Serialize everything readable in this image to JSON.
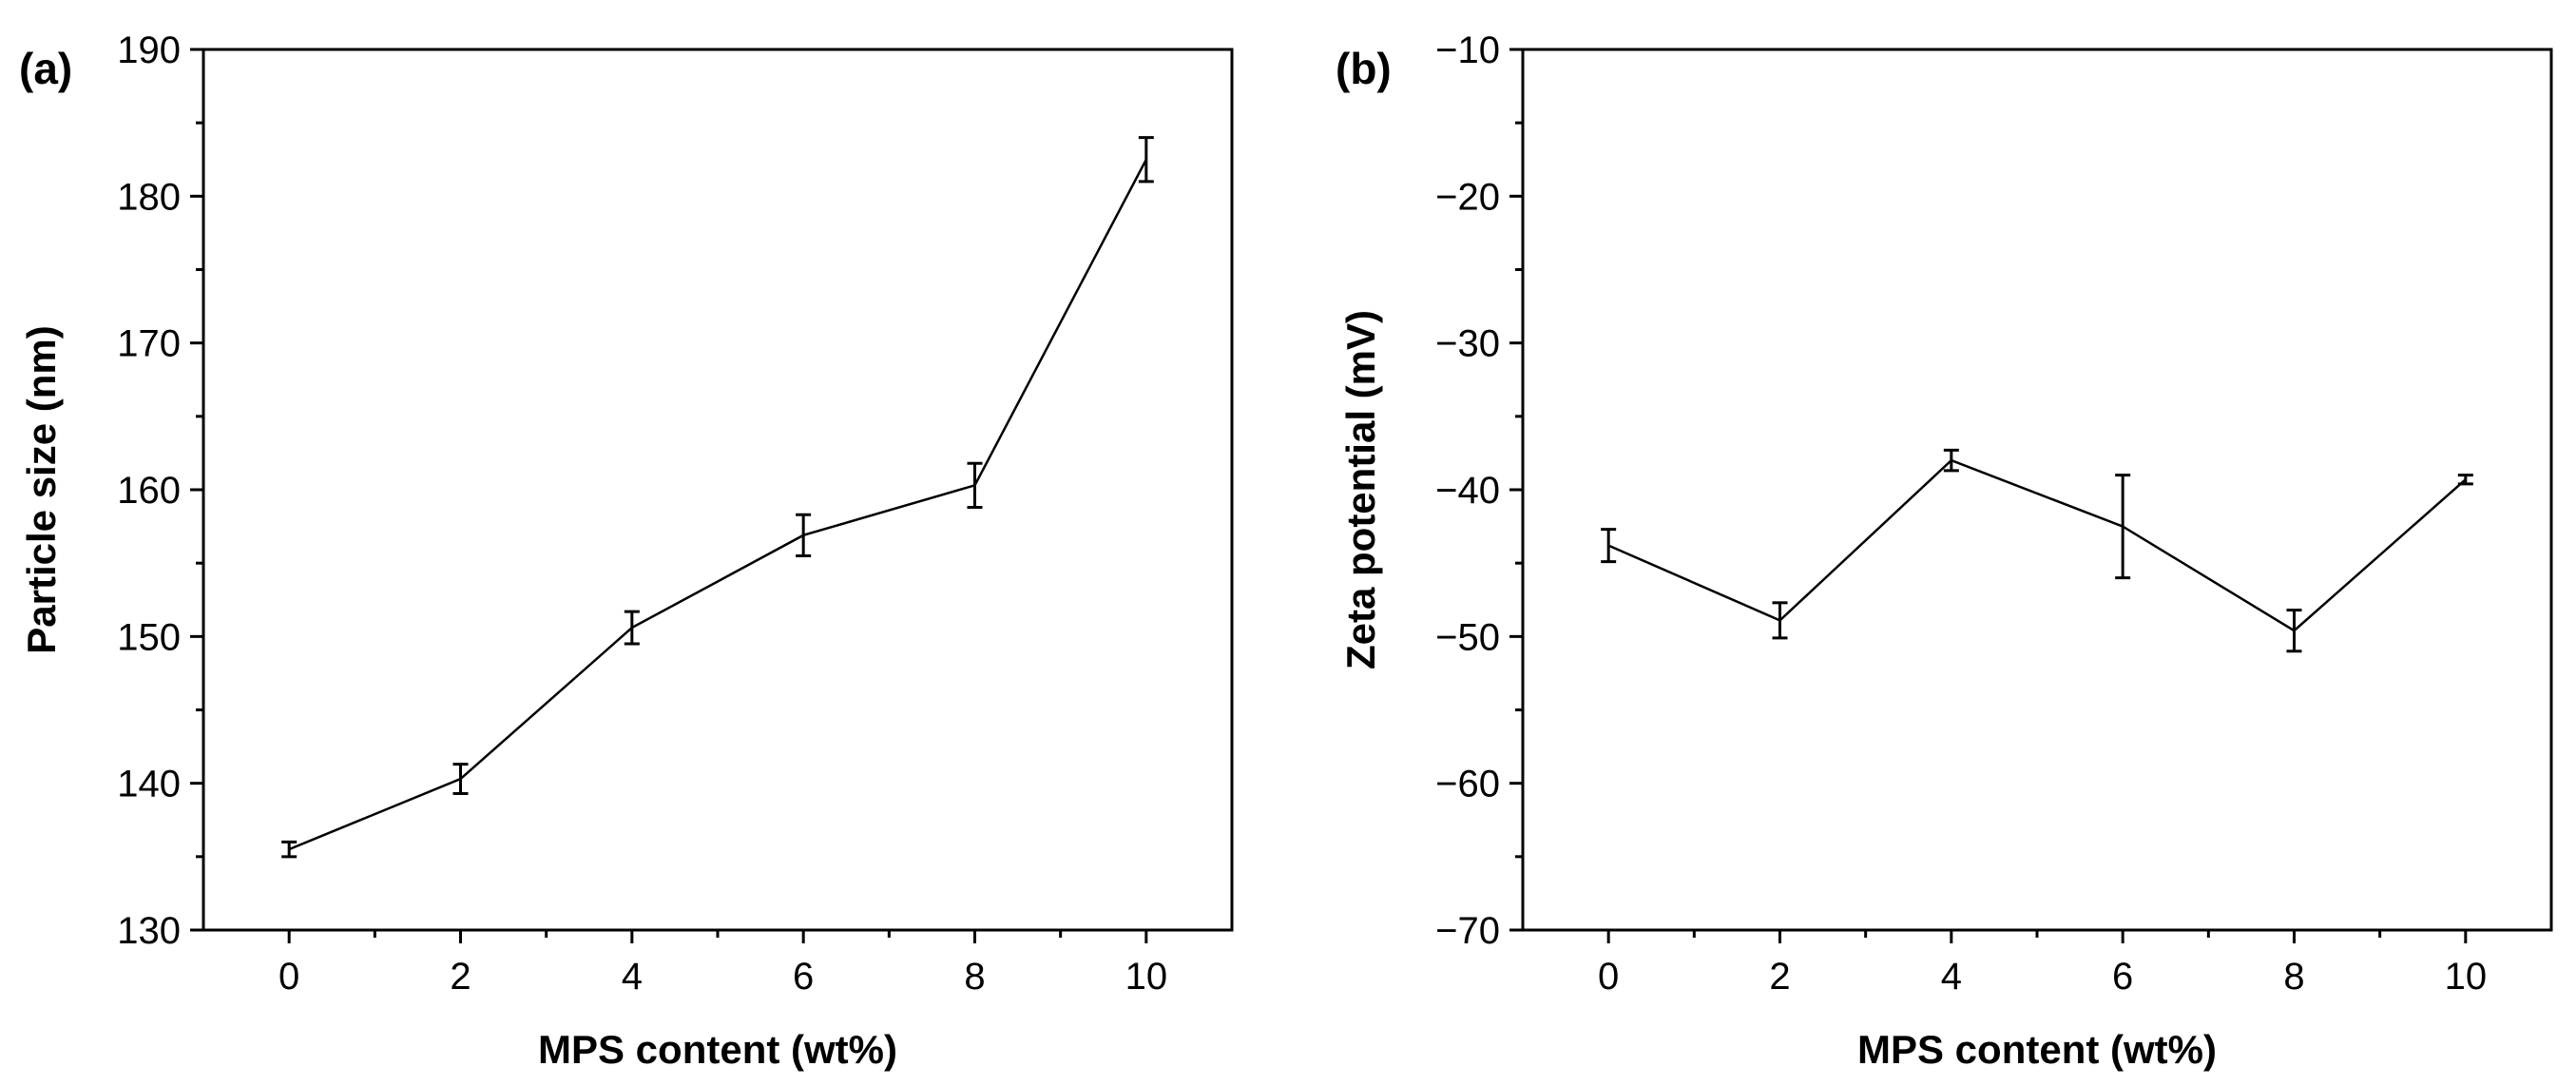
{
  "chart_data": [
    {
      "type": "line",
      "panel_label": "(a)",
      "xlabel": "MPS content (wt%)",
      "ylabel": "Particle size (nm)",
      "xlim": [
        -1,
        11
      ],
      "ylim": [
        130,
        190
      ],
      "x_ticks": [
        0,
        2,
        4,
        6,
        8,
        10
      ],
      "x_tick_labels": [
        "0",
        "2",
        "4",
        "6",
        "8",
        "10"
      ],
      "y_ticks": [
        130,
        140,
        150,
        160,
        170,
        180,
        190
      ],
      "y_tick_labels": [
        "130",
        "140",
        "150",
        "160",
        "170",
        "180",
        "190"
      ],
      "series": [
        {
          "name": "Particle size",
          "x": [
            0,
            2,
            4,
            6,
            8,
            10
          ],
          "y": [
            135.5,
            140.3,
            150.6,
            156.9,
            160.3,
            182.5
          ],
          "error": [
            0.5,
            1.0,
            1.1,
            1.4,
            1.5,
            1.5
          ]
        }
      ],
      "grid": false,
      "legend": "none"
    },
    {
      "type": "line",
      "panel_label": "(b)",
      "xlabel": "MPS content (wt%)",
      "ylabel": "Zeta potential (mV)",
      "xlim": [
        -1,
        11
      ],
      "ylim": [
        -70,
        -10
      ],
      "x_ticks": [
        0,
        2,
        4,
        6,
        8,
        10
      ],
      "x_tick_labels": [
        "0",
        "2",
        "4",
        "6",
        "8",
        "10"
      ],
      "y_ticks": [
        -70,
        -60,
        -50,
        -40,
        -30,
        -20,
        -10
      ],
      "y_tick_labels": [
        "−70",
        "−60",
        "−50",
        "−40",
        "−30",
        "−20",
        "−10"
      ],
      "series": [
        {
          "name": "Zeta potential",
          "x": [
            0,
            2,
            4,
            6,
            8,
            10
          ],
          "y": [
            -43.8,
            -48.9,
            -38.0,
            -42.5,
            -49.6,
            -39.3
          ],
          "error": [
            1.1,
            1.2,
            0.7,
            3.5,
            1.4,
            0.3
          ]
        }
      ],
      "grid": false,
      "legend": "none"
    }
  ]
}
